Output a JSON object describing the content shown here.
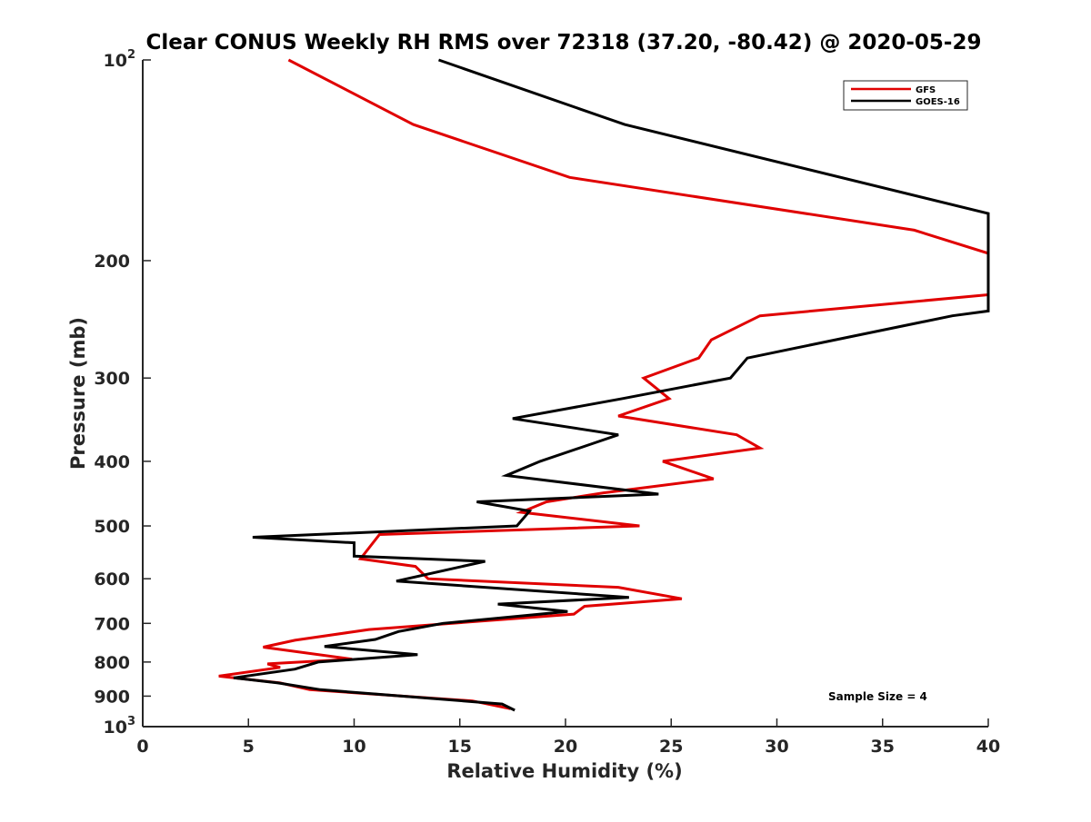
{
  "chart_data": {
    "type": "line",
    "title": "Clear CONUS Weekly RH RMS over 72318 (37.20, -80.42) @ 2020-05-29",
    "xlabel": "Relative Humidity (%)",
    "ylabel": "Pressure (mb)",
    "xlim": [
      0,
      40
    ],
    "ylim": [
      100,
      1000
    ],
    "yscale": "log",
    "y_reversed": true,
    "grid": false,
    "legend_position": "top-right",
    "x_ticks": [
      "0",
      "5",
      "10",
      "15",
      "20",
      "25",
      "30",
      "35",
      "40"
    ],
    "y_ticks": [
      {
        "value": 100,
        "base": "10",
        "exp": "2"
      },
      {
        "value": 200,
        "label": "200"
      },
      {
        "value": 300,
        "label": "300"
      },
      {
        "value": 400,
        "label": "400"
      },
      {
        "value": 500,
        "label": "500"
      },
      {
        "value": 600,
        "label": "600"
      },
      {
        "value": 700,
        "label": "700"
      },
      {
        "value": 800,
        "label": "800"
      },
      {
        "value": 900,
        "label": "900"
      },
      {
        "value": 1000,
        "base": "10",
        "exp": "3"
      }
    ],
    "series": [
      {
        "name": "GFS",
        "color": "#e00000",
        "points": [
          [
            6.9,
            100
          ],
          [
            12.8,
            125
          ],
          [
            20.2,
            150
          ],
          [
            36.5,
            180
          ],
          [
            40.0,
            195
          ],
          [
            40.0,
            225
          ],
          [
            29.2,
            242
          ],
          [
            26.9,
            263
          ],
          [
            26.3,
            280
          ],
          [
            23.7,
            300
          ],
          [
            24.9,
            322
          ],
          [
            22.5,
            342
          ],
          [
            28.1,
            365
          ],
          [
            29.2,
            382
          ],
          [
            24.6,
            400
          ],
          [
            27.0,
            425
          ],
          [
            21.8,
            446
          ],
          [
            19.1,
            460
          ],
          [
            17.9,
            477
          ],
          [
            23.5,
            500
          ],
          [
            11.2,
            515
          ],
          [
            10.3,
            560
          ],
          [
            12.9,
            575
          ],
          [
            13.5,
            600
          ],
          [
            22.5,
            618
          ],
          [
            25.5,
            643
          ],
          [
            20.9,
            660
          ],
          [
            20.4,
            678
          ],
          [
            10.7,
            715
          ],
          [
            7.2,
            742
          ],
          [
            5.7,
            760
          ],
          [
            9.9,
            792
          ],
          [
            5.9,
            805
          ],
          [
            6.5,
            815
          ],
          [
            3.6,
            840
          ],
          [
            6.5,
            860
          ],
          [
            7.9,
            880
          ],
          [
            15.6,
            915
          ],
          [
            17.4,
            940
          ]
        ]
      },
      {
        "name": "GOES-16",
        "color": "#000000",
        "points": [
          [
            14.0,
            100
          ],
          [
            22.8,
            125
          ],
          [
            40.0,
            170
          ],
          [
            40.0,
            238
          ],
          [
            38.3,
            242
          ],
          [
            33.5,
            260
          ],
          [
            28.6,
            280
          ],
          [
            27.8,
            300
          ],
          [
            22.7,
            322
          ],
          [
            17.5,
            345
          ],
          [
            22.5,
            365
          ],
          [
            21.2,
            377
          ],
          [
            18.8,
            400
          ],
          [
            17.2,
            420
          ],
          [
            24.4,
            448
          ],
          [
            15.8,
            460
          ],
          [
            18.3,
            475
          ],
          [
            17.7,
            500
          ],
          [
            5.2,
            520
          ],
          [
            10.0,
            530
          ],
          [
            10.0,
            555
          ],
          [
            16.2,
            565
          ],
          [
            12.0,
            605
          ],
          [
            23.0,
            640
          ],
          [
            16.8,
            655
          ],
          [
            20.1,
            672
          ],
          [
            14.2,
            700
          ],
          [
            12.1,
            720
          ],
          [
            11.0,
            740
          ],
          [
            8.6,
            758
          ],
          [
            13.0,
            780
          ],
          [
            8.3,
            800
          ],
          [
            7.2,
            820
          ],
          [
            4.3,
            845
          ],
          [
            6.4,
            860
          ],
          [
            8.4,
            880
          ],
          [
            17.0,
            925
          ],
          [
            17.6,
            945
          ]
        ]
      }
    ],
    "annotations": [
      "Sample Size = 4"
    ]
  }
}
